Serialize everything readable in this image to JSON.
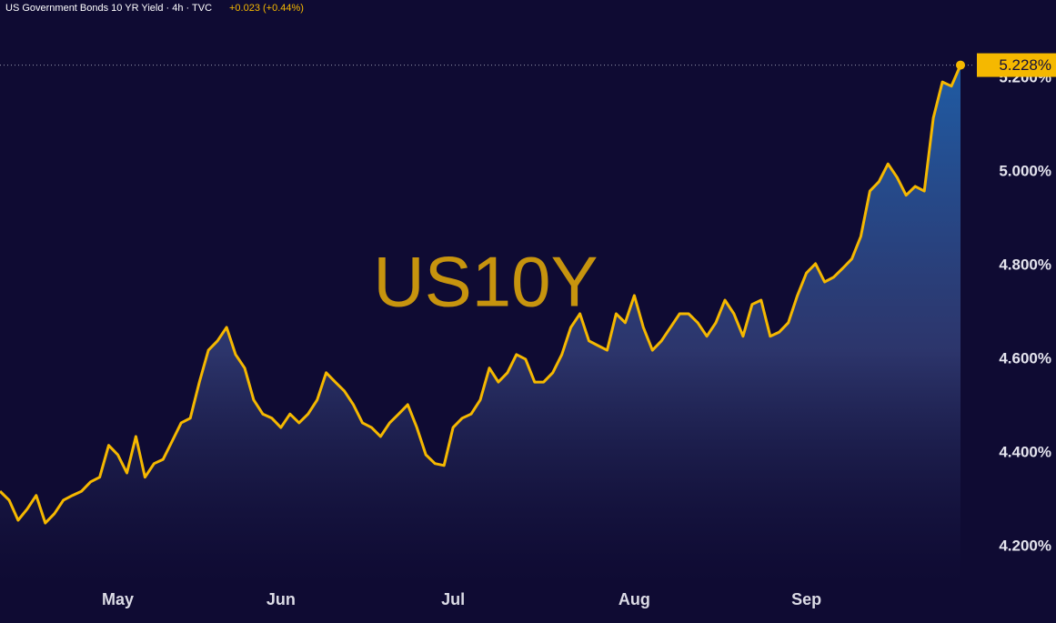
{
  "chart_data": {
    "type": "area",
    "title": "US Government Bonds 10 YR Yield · 4h · TVC",
    "change": "+0.023 (+0.44%)",
    "watermark": "US10Y",
    "last_label": "5.228%",
    "color": "#f5b800",
    "categories": [
      null,
      null,
      null,
      null,
      null,
      null,
      null,
      null,
      null,
      null,
      null,
      null,
      null,
      "May",
      null,
      null,
      null,
      null,
      null,
      null,
      null,
      null,
      null,
      null,
      null,
      null,
      null,
      null,
      null,
      null,
      null,
      "Jun",
      null,
      null,
      null,
      null,
      null,
      null,
      null,
      null,
      null,
      null,
      null,
      null,
      null,
      null,
      null,
      null,
      null,
      null,
      "Jul",
      null,
      null,
      null,
      null,
      null,
      null,
      null,
      null,
      null,
      null,
      null,
      null,
      null,
      null,
      null,
      null,
      null,
      null,
      null,
      "Aug",
      null,
      null,
      null,
      null,
      null,
      null,
      null,
      null,
      null,
      null,
      null,
      null,
      null,
      null,
      null,
      null,
      null,
      null,
      "Sep",
      null,
      null,
      null,
      null,
      null,
      null,
      null,
      null,
      null,
      null,
      null,
      null,
      null,
      null,
      null,
      null,
      null
    ],
    "values": [
      4.318,
      4.299,
      4.256,
      4.28,
      4.309,
      4.25,
      4.27,
      4.299,
      4.309,
      4.318,
      4.338,
      4.348,
      4.416,
      4.396,
      4.357,
      4.435,
      4.348,
      4.377,
      4.386,
      4.425,
      4.464,
      4.474,
      4.551,
      4.619,
      4.639,
      4.668,
      4.61,
      4.581,
      4.513,
      4.483,
      4.474,
      4.454,
      4.483,
      4.464,
      4.483,
      4.513,
      4.571,
      4.551,
      4.532,
      4.503,
      4.464,
      4.454,
      4.435,
      4.464,
      4.483,
      4.503,
      4.454,
      4.396,
      4.377,
      4.373,
      4.454,
      4.474,
      4.483,
      4.513,
      4.581,
      4.551,
      4.571,
      4.61,
      4.6,
      4.551,
      4.551,
      4.571,
      4.61,
      4.668,
      4.697,
      4.639,
      4.629,
      4.619,
      4.697,
      4.678,
      4.736,
      4.668,
      4.619,
      4.639,
      4.668,
      4.697,
      4.697,
      4.678,
      4.649,
      4.678,
      4.726,
      4.697,
      4.649,
      4.717,
      4.726,
      4.649,
      4.658,
      4.678,
      4.736,
      4.784,
      4.804,
      4.765,
      4.775,
      4.794,
      4.814,
      4.862,
      4.959,
      4.979,
      5.017,
      4.988,
      4.95,
      4.969,
      4.959,
      5.115,
      5.192,
      5.183,
      5.228
    ],
    "ylim": [
      4.124,
      5.367
    ],
    "yticks": [
      {
        "value": 4.2,
        "label": "4.200%"
      },
      {
        "value": 4.4,
        "label": "4.400%"
      },
      {
        "value": 4.6,
        "label": "4.600%"
      },
      {
        "value": 4.8,
        "label": "4.800%"
      },
      {
        "value": 5.0,
        "label": "5.000%"
      },
      {
        "value": 5.2,
        "label": "5.200%"
      }
    ]
  }
}
